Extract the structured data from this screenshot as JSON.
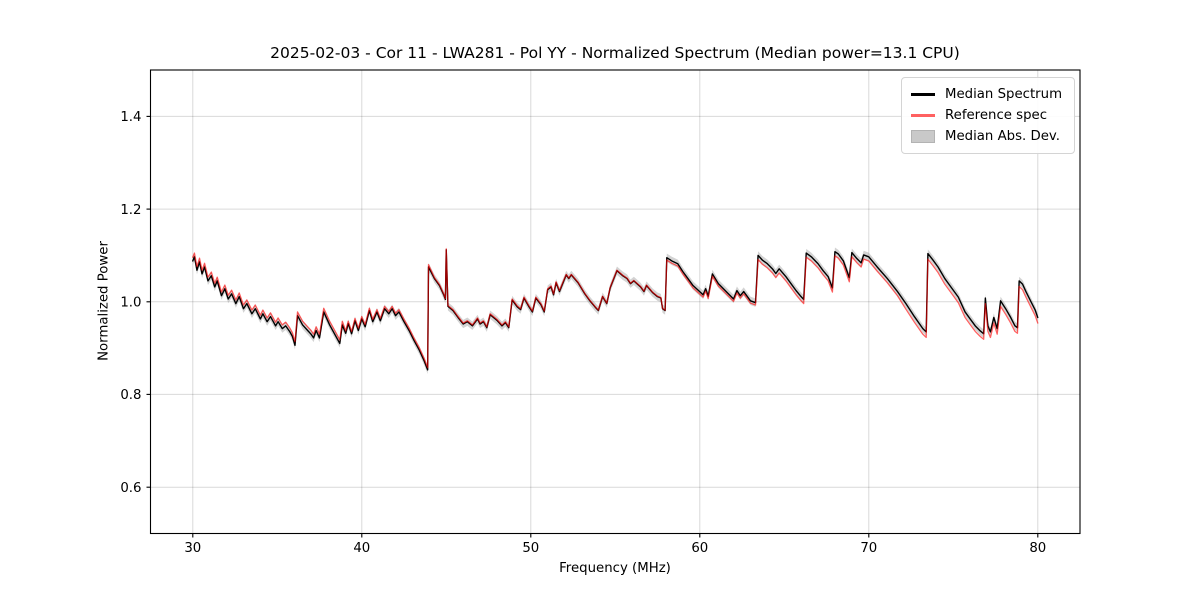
{
  "chart_data": {
    "type": "line",
    "title": "2025-02-03 - Cor 11 - LWA281 - Pol YY - Normalized Spectrum (Median power=13.1 CPU)",
    "xlabel": "Frequency (MHz)",
    "ylabel": "Normalized Power",
    "xlim": [
      27.5,
      82.5
    ],
    "ylim": [
      0.5,
      1.5
    ],
    "xticks": [
      30,
      40,
      50,
      60,
      70,
      80
    ],
    "xtick_labels": [
      "30",
      "40",
      "50",
      "60",
      "70",
      "80"
    ],
    "yticks": [
      0.6,
      0.8,
      1.0,
      1.2,
      1.4
    ],
    "ytick_labels": [
      "0.6",
      "0.8",
      "1.0",
      "1.2",
      "1.4"
    ],
    "grid": true,
    "legend_position": "upper right",
    "colors": {
      "grid": "rgba(0,0,0,0.15)",
      "spine": "#000000",
      "tick_text": "#000000",
      "background": "#ffffff"
    },
    "x": [
      30.0,
      30.1,
      30.25,
      30.4,
      30.55,
      30.7,
      30.9,
      31.1,
      31.3,
      31.45,
      31.7,
      31.9,
      32.1,
      32.3,
      32.55,
      32.75,
      33.0,
      33.2,
      33.5,
      33.7,
      34.0,
      34.15,
      34.4,
      34.6,
      34.9,
      35.05,
      35.3,
      35.5,
      35.75,
      35.9,
      36.05,
      36.2,
      36.5,
      36.8,
      37.0,
      37.15,
      37.3,
      37.5,
      37.75,
      38.1,
      38.4,
      38.7,
      38.85,
      39.05,
      39.2,
      39.4,
      39.6,
      39.8,
      40.0,
      40.2,
      40.45,
      40.65,
      40.9,
      41.1,
      41.35,
      41.6,
      41.8,
      42.0,
      42.2,
      42.5,
      42.8,
      43.1,
      43.4,
      43.7,
      43.9,
      43.95,
      44.3,
      44.6,
      44.85,
      44.95,
      45.0,
      45.1,
      45.4,
      45.7,
      46.0,
      46.25,
      46.55,
      46.85,
      47.0,
      47.2,
      47.4,
      47.6,
      48.0,
      48.3,
      48.5,
      48.7,
      48.9,
      49.2,
      49.4,
      49.6,
      49.9,
      50.1,
      50.3,
      50.6,
      50.8,
      51.0,
      51.2,
      51.35,
      51.5,
      51.7,
      51.9,
      52.1,
      52.25,
      52.4,
      52.8,
      53.2,
      53.5,
      53.8,
      54.0,
      54.25,
      54.5,
      54.7,
      55.1,
      55.45,
      55.7,
      55.9,
      56.1,
      56.5,
      56.7,
      56.85,
      57.2,
      57.5,
      57.7,
      57.8,
      57.95,
      58.05,
      58.35,
      58.7,
      59.0,
      59.3,
      59.6,
      59.9,
      60.2,
      60.35,
      60.5,
      60.75,
      61.1,
      61.4,
      61.7,
      62.0,
      62.2,
      62.4,
      62.6,
      63.0,
      63.3,
      63.45,
      63.7,
      64.0,
      64.3,
      64.5,
      64.7,
      65.1,
      65.4,
      65.7,
      65.95,
      66.15,
      66.3,
      66.6,
      67.0,
      67.3,
      67.6,
      67.85,
      68.0,
      68.2,
      68.5,
      68.85,
      69.0,
      69.3,
      69.55,
      69.7,
      70.0,
      70.5,
      71.1,
      71.7,
      72.2,
      72.7,
      73.2,
      73.4,
      73.5,
      73.8,
      74.1,
      74.5,
      74.9,
      75.3,
      75.7,
      76.0,
      76.3,
      76.6,
      76.8,
      76.9,
      77.05,
      77.2,
      77.4,
      77.6,
      77.8,
      78.1,
      78.4,
      78.65,
      78.8,
      78.9,
      79.1,
      79.3,
      79.6,
      79.85,
      80.0
    ],
    "series": [
      {
        "name": "Median Spectrum",
        "type": "line",
        "color": "#000000",
        "linewidth": 1.4,
        "values": [
          1.088,
          1.097,
          1.068,
          1.086,
          1.06,
          1.075,
          1.045,
          1.056,
          1.032,
          1.045,
          1.013,
          1.028,
          1.006,
          1.017,
          0.996,
          1.011,
          0.985,
          0.996,
          0.974,
          0.985,
          0.963,
          0.974,
          0.957,
          0.968,
          0.948,
          0.957,
          0.942,
          0.948,
          0.935,
          0.925,
          0.906,
          0.97,
          0.95,
          0.938,
          0.93,
          0.922,
          0.938,
          0.922,
          0.978,
          0.95,
          0.93,
          0.91,
          0.95,
          0.932,
          0.953,
          0.931,
          0.959,
          0.938,
          0.963,
          0.946,
          0.981,
          0.957,
          0.978,
          0.959,
          0.985,
          0.974,
          0.985,
          0.97,
          0.978,
          0.957,
          0.938,
          0.916,
          0.896,
          0.872,
          0.853,
          1.075,
          1.05,
          1.035,
          1.015,
          1.005,
          1.112,
          0.99,
          0.981,
          0.966,
          0.952,
          0.957,
          0.948,
          0.963,
          0.952,
          0.957,
          0.944,
          0.972,
          0.96,
          0.948,
          0.955,
          0.944,
          1.004,
          0.989,
          0.983,
          1.008,
          0.989,
          0.978,
          1.008,
          0.994,
          0.978,
          1.026,
          1.032,
          1.015,
          1.041,
          1.022,
          1.04,
          1.058,
          1.05,
          1.058,
          1.041,
          1.017,
          1.002,
          0.989,
          0.981,
          1.011,
          0.996,
          1.03,
          1.067,
          1.056,
          1.05,
          1.039,
          1.045,
          1.032,
          1.022,
          1.035,
          1.02,
          1.011,
          1.008,
          0.985,
          0.981,
          1.095,
          1.088,
          1.082,
          1.065,
          1.05,
          1.035,
          1.025,
          1.015,
          1.028,
          1.012,
          1.06,
          1.039,
          1.028,
          1.017,
          1.006,
          1.024,
          1.013,
          1.022,
          1.002,
          0.998,
          1.1,
          1.09,
          1.082,
          1.071,
          1.061,
          1.071,
          1.054,
          1.039,
          1.024,
          1.013,
          1.005,
          1.105,
          1.097,
          1.082,
          1.067,
          1.054,
          1.03,
          1.108,
          1.103,
          1.088,
          1.052,
          1.106,
          1.093,
          1.084,
          1.101,
          1.097,
          1.075,
          1.05,
          1.022,
          0.996,
          0.968,
          0.942,
          0.935,
          1.104,
          1.09,
          1.075,
          1.05,
          1.03,
          1.01,
          0.978,
          0.963,
          0.948,
          0.937,
          0.931,
          1.008,
          0.948,
          0.935,
          0.966,
          0.942,
          1.002,
          0.985,
          0.966,
          0.948,
          0.944,
          1.045,
          1.038,
          1.022,
          1.0,
          0.982,
          0.966
        ]
      },
      {
        "name": "Reference spec",
        "type": "line",
        "color": "rgba(255,0,0,0.62)",
        "linewidth": 1.3,
        "values": [
          1.096,
          1.105,
          1.076,
          1.094,
          1.068,
          1.083,
          1.053,
          1.064,
          1.04,
          1.053,
          1.021,
          1.036,
          1.014,
          1.025,
          1.004,
          1.019,
          0.993,
          1.004,
          0.982,
          0.993,
          0.971,
          0.982,
          0.965,
          0.976,
          0.956,
          0.965,
          0.95,
          0.956,
          0.943,
          0.933,
          0.914,
          0.978,
          0.958,
          0.946,
          0.938,
          0.93,
          0.946,
          0.93,
          0.986,
          0.958,
          0.938,
          0.918,
          0.958,
          0.937,
          0.958,
          0.936,
          0.964,
          0.943,
          0.968,
          0.951,
          0.986,
          0.962,
          0.983,
          0.964,
          0.99,
          0.979,
          0.99,
          0.975,
          0.983,
          0.962,
          0.943,
          0.921,
          0.901,
          0.877,
          0.858,
          1.08,
          1.052,
          1.037,
          1.017,
          1.007,
          1.114,
          0.992,
          0.983,
          0.968,
          0.954,
          0.959,
          0.95,
          0.965,
          0.954,
          0.959,
          0.946,
          0.974,
          0.962,
          0.95,
          0.957,
          0.946,
          1.006,
          0.991,
          0.985,
          1.01,
          0.991,
          0.98,
          1.01,
          0.996,
          0.98,
          1.028,
          1.034,
          1.017,
          1.043,
          1.024,
          1.042,
          1.059,
          1.051,
          1.059,
          1.042,
          1.018,
          1.003,
          0.99,
          0.982,
          1.012,
          0.997,
          1.031,
          1.068,
          1.057,
          1.051,
          1.04,
          1.046,
          1.033,
          1.023,
          1.036,
          1.021,
          1.012,
          1.009,
          0.986,
          0.982,
          1.09,
          1.083,
          1.077,
          1.06,
          1.045,
          1.03,
          1.02,
          1.01,
          1.023,
          1.007,
          1.055,
          1.034,
          1.023,
          1.012,
          1.001,
          1.019,
          1.008,
          1.017,
          0.997,
          0.993,
          1.091,
          1.081,
          1.073,
          1.062,
          1.052,
          1.062,
          1.045,
          1.03,
          1.015,
          1.004,
          0.996,
          1.096,
          1.088,
          1.073,
          1.058,
          1.045,
          1.021,
          1.099,
          1.094,
          1.079,
          1.043,
          1.097,
          1.084,
          1.075,
          1.092,
          1.088,
          1.066,
          1.041,
          1.013,
          0.984,
          0.956,
          0.93,
          0.923,
          1.092,
          1.078,
          1.063,
          1.038,
          1.018,
          0.998,
          0.966,
          0.951,
          0.936,
          0.925,
          0.919,
          0.996,
          0.936,
          0.923,
          0.954,
          0.93,
          0.99,
          0.973,
          0.954,
          0.936,
          0.932,
          1.033,
          1.026,
          1.01,
          0.988,
          0.97,
          0.954
        ]
      },
      {
        "name": "Median Abs. Dev.",
        "type": "band",
        "around_series": "Median Spectrum",
        "halfwidth": 0.009,
        "fill": "#9e9e9e",
        "fill_opacity": 0.45,
        "legend_face": "#c9c9c9",
        "legend_edge": "#b3b3b3"
      }
    ]
  }
}
